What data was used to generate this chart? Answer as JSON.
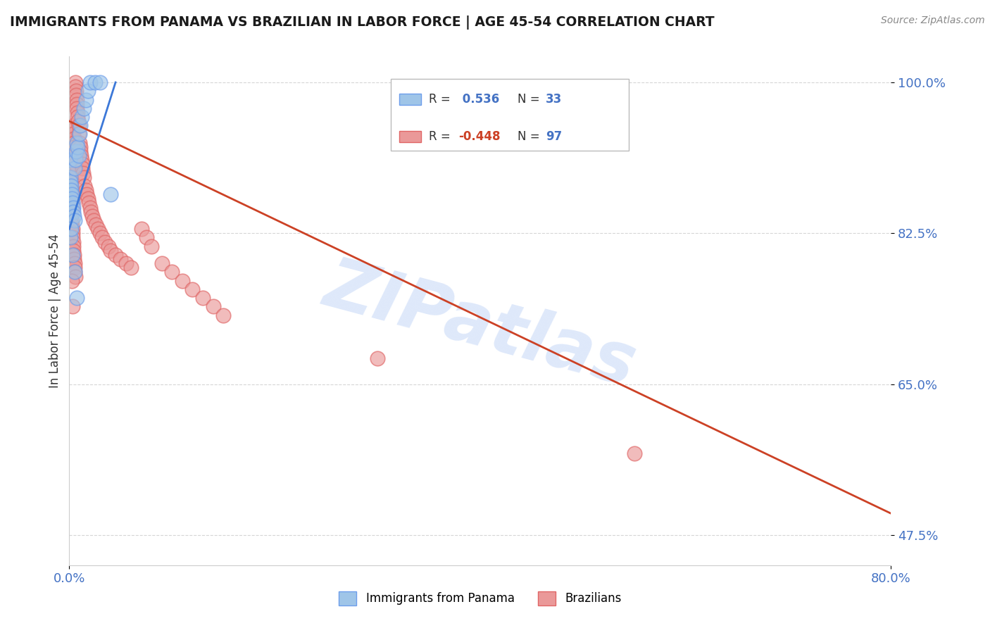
{
  "title": "IMMIGRANTS FROM PANAMA VS BRAZILIAN IN LABOR FORCE | AGE 45-54 CORRELATION CHART",
  "source_text": "Source: ZipAtlas.com",
  "ylabel": "In Labor Force | Age 45-54",
  "xlim": [
    0.0,
    80.0
  ],
  "ylim": [
    44.0,
    103.0
  ],
  "x_ticks": [
    0.0,
    80.0
  ],
  "x_tick_labels": [
    "0.0%",
    "80.0%"
  ],
  "y_tick_values": [
    47.5,
    65.0,
    82.5,
    100.0
  ],
  "y_tick_labels": [
    "47.5%",
    "65.0%",
    "82.5%",
    "100.0%"
  ],
  "watermark": "ZIPatlas",
  "legend_label1": "Immigrants from Panama",
  "legend_label2": "Brazilians",
  "panama_color": "#9fc5e8",
  "brazil_color": "#ea9999",
  "panama_edge_color": "#6d9eeb",
  "brazil_edge_color": "#e06666",
  "panama_line_color": "#3c78d8",
  "brazil_line_color": "#cc4125",
  "background_color": "#ffffff",
  "title_color": "#1a1a1a",
  "tick_label_color": "#4472c4",
  "r_color_panama": "#4472c4",
  "r_color_brazil": "#cc4125",
  "n_color": "#4472c4",
  "grid_color": "#cccccc",
  "panama_scatter_x": [
    0.05,
    0.08,
    0.12,
    0.15,
    0.18,
    0.22,
    0.25,
    0.3,
    0.35,
    0.4,
    0.45,
    0.5,
    0.55,
    0.6,
    0.65,
    0.7,
    0.8,
    0.9,
    1.0,
    1.1,
    1.2,
    1.4,
    1.6,
    1.8,
    2.0,
    2.5,
    3.0,
    0.1,
    0.2,
    0.3,
    0.5,
    0.7,
    4.0
  ],
  "panama_scatter_y": [
    91.0,
    89.0,
    88.5,
    88.0,
    87.5,
    87.0,
    86.5,
    86.0,
    85.5,
    85.0,
    84.5,
    84.0,
    90.0,
    91.0,
    92.0,
    93.0,
    92.5,
    91.5,
    94.0,
    95.0,
    96.0,
    97.0,
    98.0,
    99.0,
    100.0,
    100.0,
    100.0,
    82.0,
    83.0,
    80.0,
    78.0,
    75.0,
    87.0
  ],
  "brazil_scatter_x": [
    0.05,
    0.08,
    0.1,
    0.12,
    0.15,
    0.18,
    0.2,
    0.22,
    0.25,
    0.28,
    0.3,
    0.32,
    0.35,
    0.38,
    0.4,
    0.42,
    0.45,
    0.48,
    0.5,
    0.52,
    0.55,
    0.58,
    0.6,
    0.62,
    0.65,
    0.68,
    0.7,
    0.72,
    0.75,
    0.78,
    0.8,
    0.85,
    0.9,
    0.95,
    1.0,
    1.05,
    1.1,
    1.15,
    1.2,
    1.25,
    1.3,
    1.35,
    1.4,
    1.5,
    1.6,
    1.7,
    1.8,
    1.9,
    2.0,
    2.1,
    2.2,
    2.4,
    2.6,
    2.8,
    3.0,
    3.2,
    3.5,
    3.8,
    4.0,
    4.5,
    5.0,
    5.5,
    6.0,
    7.0,
    7.5,
    8.0,
    9.0,
    10.0,
    11.0,
    12.0,
    13.0,
    14.0,
    0.06,
    0.09,
    0.11,
    0.14,
    0.16,
    0.19,
    0.21,
    0.24,
    0.26,
    0.29,
    0.31,
    0.33,
    0.36,
    0.39,
    0.41,
    0.44,
    0.47,
    0.49,
    0.51,
    0.54,
    0.57,
    15.0,
    30.0,
    55.0,
    0.23,
    0.34
  ],
  "brazil_scatter_y": [
    91.0,
    90.5,
    90.0,
    89.5,
    89.0,
    88.5,
    88.0,
    87.5,
    87.0,
    86.5,
    86.0,
    85.5,
    95.0,
    94.5,
    94.0,
    93.5,
    93.0,
    92.5,
    92.0,
    91.5,
    91.0,
    90.5,
    100.0,
    99.5,
    99.0,
    98.5,
    98.0,
    97.5,
    97.0,
    96.5,
    96.0,
    95.5,
    95.0,
    94.0,
    93.0,
    92.5,
    92.0,
    91.5,
    91.0,
    90.5,
    90.0,
    89.5,
    89.0,
    88.0,
    87.5,
    87.0,
    86.5,
    86.0,
    85.5,
    85.0,
    84.5,
    84.0,
    83.5,
    83.0,
    82.5,
    82.0,
    81.5,
    81.0,
    80.5,
    80.0,
    79.5,
    79.0,
    78.5,
    83.0,
    82.0,
    81.0,
    79.0,
    78.0,
    77.0,
    76.0,
    75.0,
    74.0,
    88.0,
    87.5,
    87.0,
    86.0,
    85.5,
    85.0,
    84.5,
    84.0,
    83.5,
    83.0,
    82.5,
    82.0,
    81.5,
    81.0,
    80.5,
    80.0,
    79.5,
    79.0,
    78.5,
    78.0,
    77.5,
    73.0,
    68.0,
    57.0,
    77.0,
    74.0
  ],
  "panama_trendline_x": [
    0.0,
    4.5
  ],
  "panama_trendline_y": [
    83.0,
    100.0
  ],
  "brazil_trendline_x": [
    0.0,
    80.0
  ],
  "brazil_trendline_y": [
    95.5,
    50.0
  ]
}
